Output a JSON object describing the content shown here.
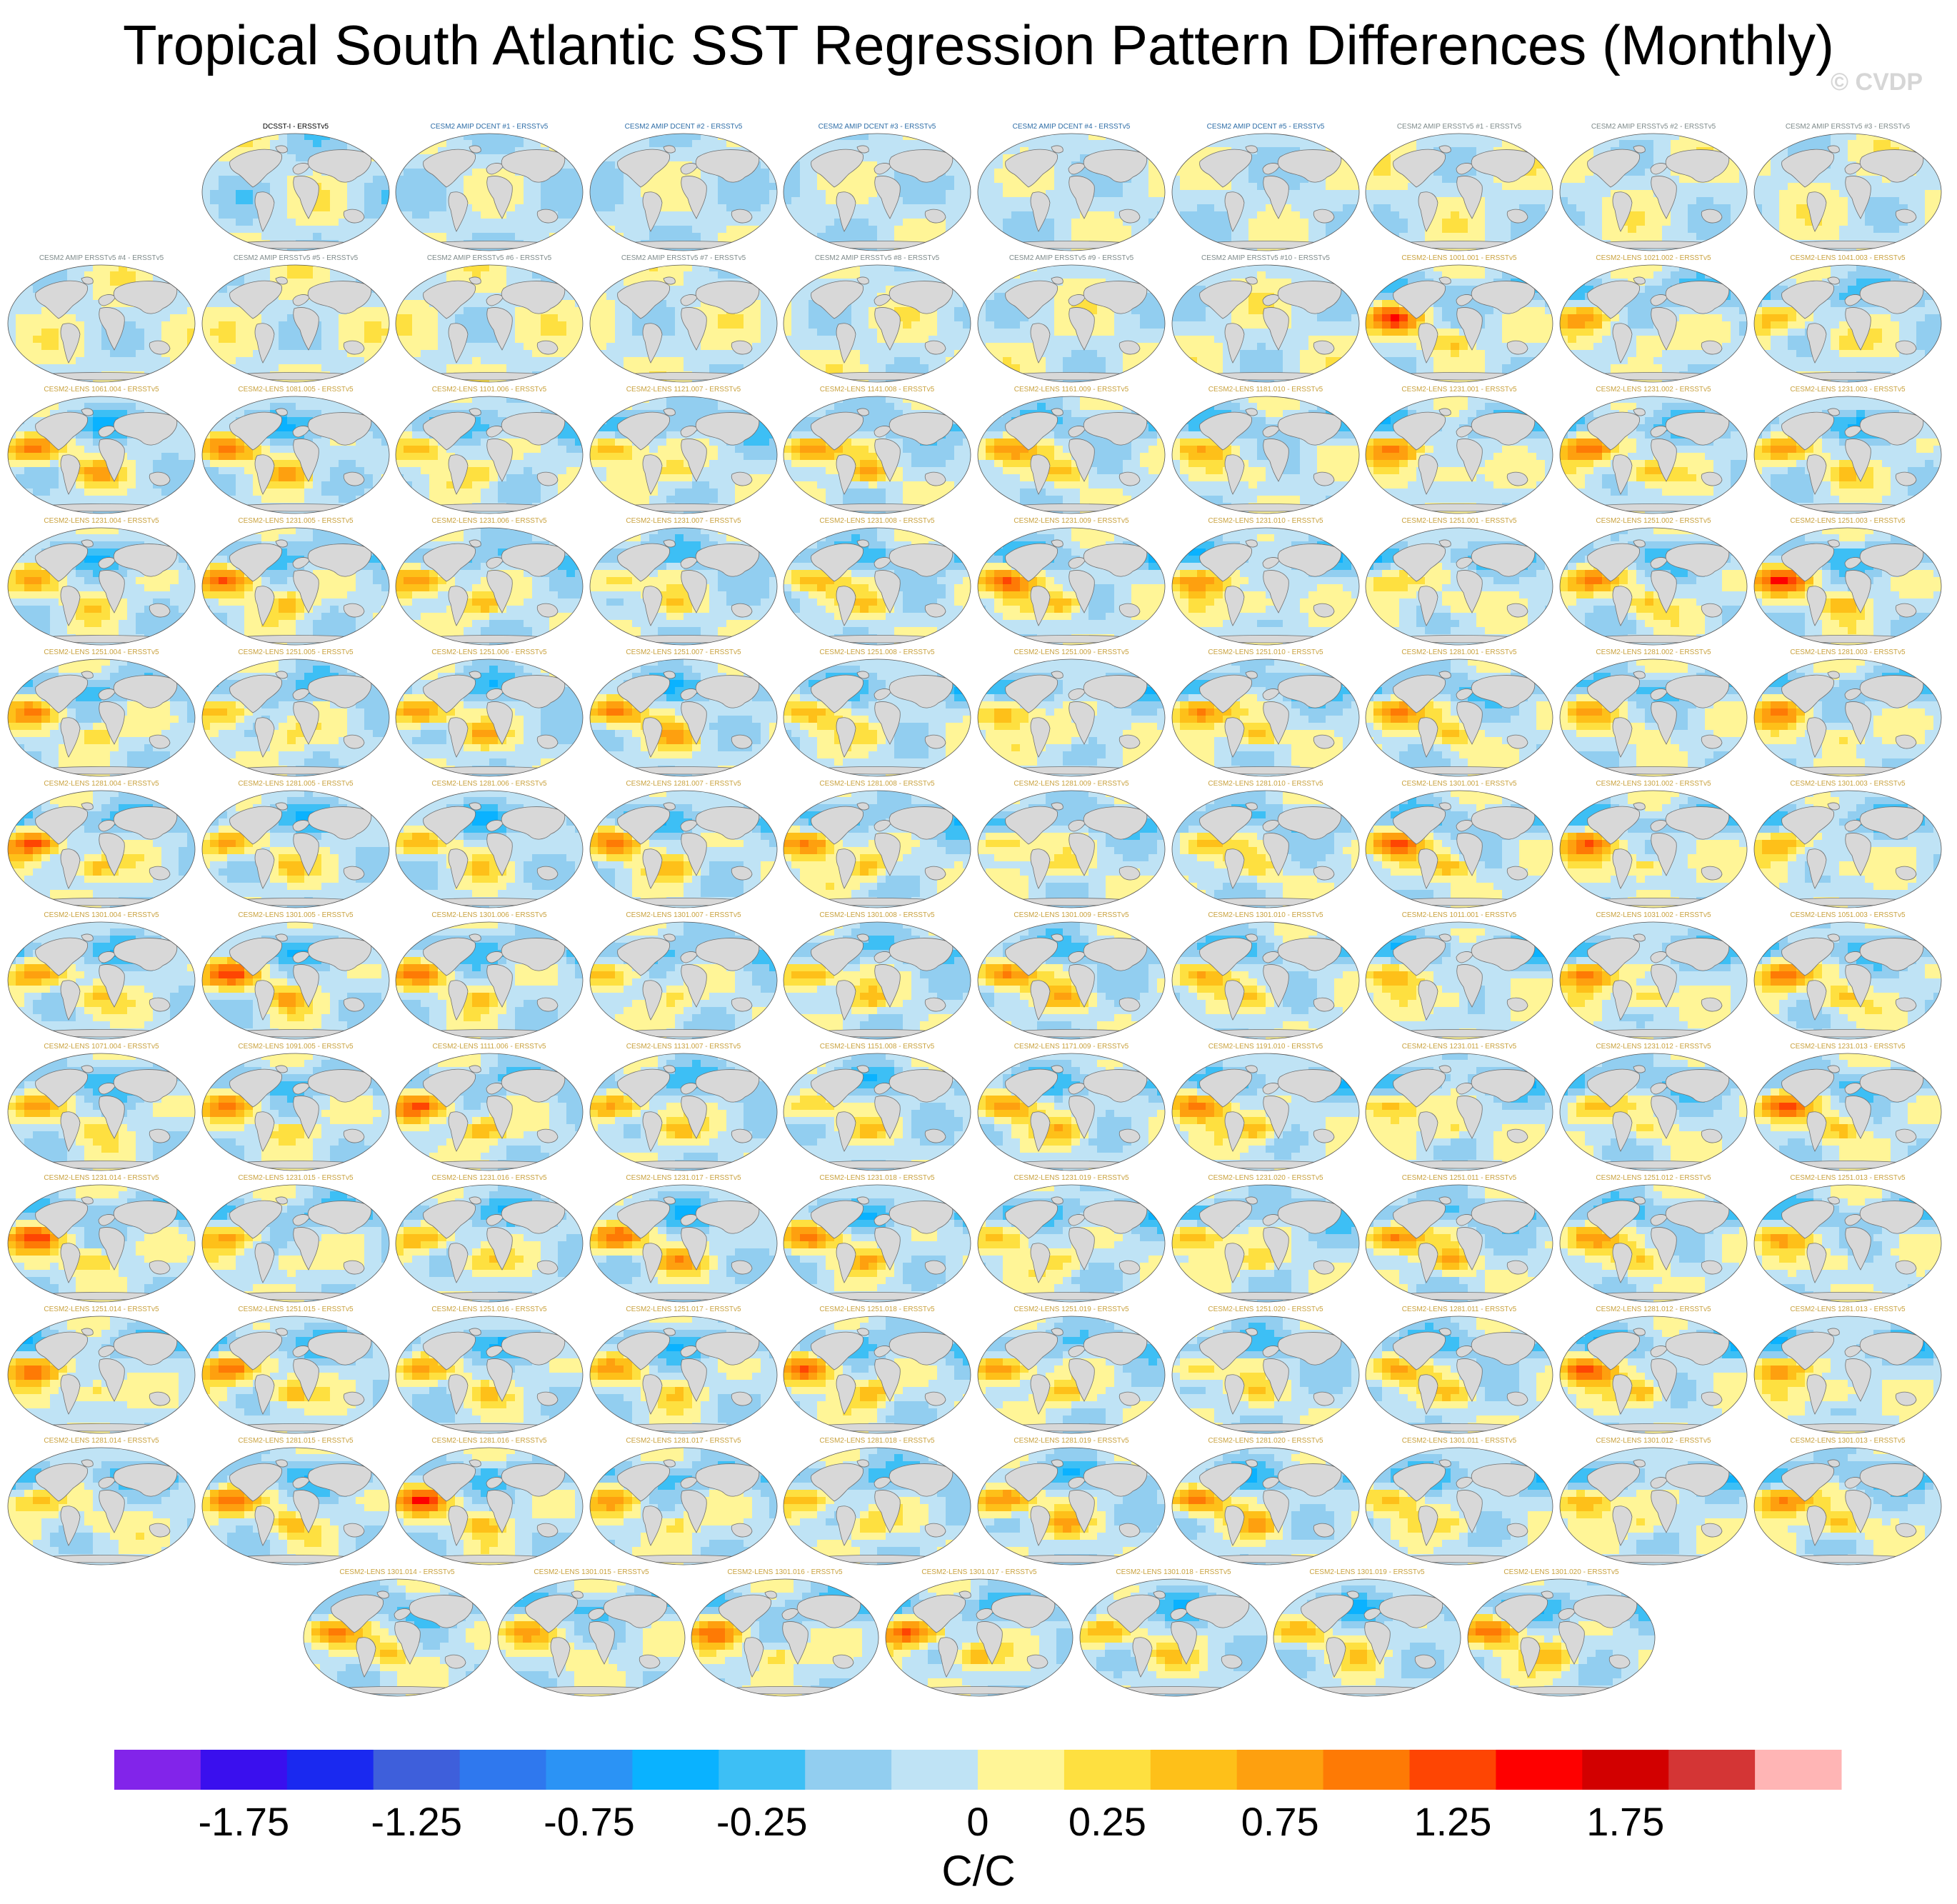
{
  "title": "Tropical South Atlantic SST Regression Pattern Differences (Monthly)",
  "watermark": "© CVDP",
  "chart_data": {
    "type": "heatmap",
    "projection": "global map panels",
    "panels": [
      {
        "label": "DCSST-I - ERSSTv5",
        "group": "obs"
      },
      {
        "label": "CESM2 AMIP DCENT #1 - ERSSTv5",
        "group": "dcent"
      },
      {
        "label": "CESM2 AMIP DCENT #2 - ERSSTv5",
        "group": "dcent"
      },
      {
        "label": "CESM2 AMIP DCENT #3 - ERSSTv5",
        "group": "dcent"
      },
      {
        "label": "CESM2 AMIP DCENT #4 - ERSSTv5",
        "group": "dcent"
      },
      {
        "label": "CESM2 AMIP DCENT #5 - ERSSTv5",
        "group": "dcent"
      },
      {
        "label": "CESM2 AMIP ERSSTv5 #1 - ERSSTv5",
        "group": "amip"
      },
      {
        "label": "CESM2 AMIP ERSSTv5 #2 - ERSSTv5",
        "group": "amip"
      },
      {
        "label": "CESM2 AMIP ERSSTv5 #3 - ERSSTv5",
        "group": "amip"
      },
      {
        "label": "CESM2 AMIP ERSSTv5 #4 - ERSSTv5",
        "group": "amip"
      },
      {
        "label": "CESM2 AMIP ERSSTv5 #5 - ERSSTv5",
        "group": "amip"
      },
      {
        "label": "CESM2 AMIP ERSSTv5 #6 - ERSSTv5",
        "group": "amip"
      },
      {
        "label": "CESM2 AMIP ERSSTv5 #7 - ERSSTv5",
        "group": "amip"
      },
      {
        "label": "CESM2 AMIP ERSSTv5 #8 - ERSSTv5",
        "group": "amip"
      },
      {
        "label": "CESM2 AMIP ERSSTv5 #9 - ERSSTv5",
        "group": "amip"
      },
      {
        "label": "CESM2 AMIP ERSSTv5 #10 - ERSSTv5",
        "group": "amip"
      },
      {
        "label": "CESM2-LENS 1001.001 - ERSSTv5",
        "group": "lens"
      },
      {
        "label": "CESM2-LENS 1021.002 - ERSSTv5",
        "group": "lens"
      },
      {
        "label": "CESM2-LENS 1041.003 - ERSSTv5",
        "group": "lens"
      },
      {
        "label": "CESM2-LENS 1061.004 - ERSSTv5",
        "group": "lens"
      },
      {
        "label": "CESM2-LENS 1081.005 - ERSSTv5",
        "group": "lens"
      },
      {
        "label": "CESM2-LENS 1101.006 - ERSSTv5",
        "group": "lens"
      },
      {
        "label": "CESM2-LENS 1121.007 - ERSSTv5",
        "group": "lens"
      },
      {
        "label": "CESM2-LENS 1141.008 - ERSSTv5",
        "group": "lens"
      },
      {
        "label": "CESM2-LENS 1161.009 - ERSSTv5",
        "group": "lens"
      },
      {
        "label": "CESM2-LENS 1181.010 - ERSSTv5",
        "group": "lens"
      },
      {
        "label": "CESM2-LENS 1231.001 - ERSSTv5",
        "group": "lens"
      },
      {
        "label": "CESM2-LENS 1231.002 - ERSSTv5",
        "group": "lens"
      },
      {
        "label": "CESM2-LENS 1231.003 - ERSSTv5",
        "group": "lens"
      },
      {
        "label": "CESM2-LENS 1231.004 - ERSSTv5",
        "group": "lens"
      },
      {
        "label": "CESM2-LENS 1231.005 - ERSSTv5",
        "group": "lens"
      },
      {
        "label": "CESM2-LENS 1231.006 - ERSSTv5",
        "group": "lens"
      },
      {
        "label": "CESM2-LENS 1231.007 - ERSSTv5",
        "group": "lens"
      },
      {
        "label": "CESM2-LENS 1231.008 - ERSSTv5",
        "group": "lens"
      },
      {
        "label": "CESM2-LENS 1231.009 - ERSSTv5",
        "group": "lens"
      },
      {
        "label": "CESM2-LENS 1231.010 - ERSSTv5",
        "group": "lens"
      },
      {
        "label": "CESM2-LENS 1251.001 - ERSSTv5",
        "group": "lens"
      },
      {
        "label": "CESM2-LENS 1251.002 - ERSSTv5",
        "group": "lens"
      },
      {
        "label": "CESM2-LENS 1251.003 - ERSSTv5",
        "group": "lens"
      },
      {
        "label": "CESM2-LENS 1251.004 - ERSSTv5",
        "group": "lens"
      },
      {
        "label": "CESM2-LENS 1251.005 - ERSSTv5",
        "group": "lens"
      },
      {
        "label": "CESM2-LENS 1251.006 - ERSSTv5",
        "group": "lens"
      },
      {
        "label": "CESM2-LENS 1251.007 - ERSSTv5",
        "group": "lens"
      },
      {
        "label": "CESM2-LENS 1251.008 - ERSSTv5",
        "group": "lens"
      },
      {
        "label": "CESM2-LENS 1251.009 - ERSSTv5",
        "group": "lens"
      },
      {
        "label": "CESM2-LENS 1251.010 - ERSSTv5",
        "group": "lens"
      },
      {
        "label": "CESM2-LENS 1281.001 - ERSSTv5",
        "group": "lens"
      },
      {
        "label": "CESM2-LENS 1281.002 - ERSSTv5",
        "group": "lens"
      },
      {
        "label": "CESM2-LENS 1281.003 - ERSSTv5",
        "group": "lens"
      },
      {
        "label": "CESM2-LENS 1281.004 - ERSSTv5",
        "group": "lens"
      },
      {
        "label": "CESM2-LENS 1281.005 - ERSSTv5",
        "group": "lens"
      },
      {
        "label": "CESM2-LENS 1281.006 - ERSSTv5",
        "group": "lens"
      },
      {
        "label": "CESM2-LENS 1281.007 - ERSSTv5",
        "group": "lens"
      },
      {
        "label": "CESM2-LENS 1281.008 - ERSSTv5",
        "group": "lens"
      },
      {
        "label": "CESM2-LENS 1281.009 - ERSSTv5",
        "group": "lens"
      },
      {
        "label": "CESM2-LENS 1281.010 - ERSSTv5",
        "group": "lens"
      },
      {
        "label": "CESM2-LENS 1301.001 - ERSSTv5",
        "group": "lens"
      },
      {
        "label": "CESM2-LENS 1301.002 - ERSSTv5",
        "group": "lens"
      },
      {
        "label": "CESM2-LENS 1301.003 - ERSSTv5",
        "group": "lens"
      },
      {
        "label": "CESM2-LENS 1301.004 - ERSSTv5",
        "group": "lens"
      },
      {
        "label": "CESM2-LENS 1301.005 - ERSSTv5",
        "group": "lens"
      },
      {
        "label": "CESM2-LENS 1301.006 - ERSSTv5",
        "group": "lens"
      },
      {
        "label": "CESM2-LENS 1301.007 - ERSSTv5",
        "group": "lens"
      },
      {
        "label": "CESM2-LENS 1301.008 - ERSSTv5",
        "group": "lens"
      },
      {
        "label": "CESM2-LENS 1301.009 - ERSSTv5",
        "group": "lens"
      },
      {
        "label": "CESM2-LENS 1301.010 - ERSSTv5",
        "group": "lens"
      },
      {
        "label": "CESM2-LENS 1011.001 - ERSSTv5",
        "group": "lens"
      },
      {
        "label": "CESM2-LENS 1031.002 - ERSSTv5",
        "group": "lens"
      },
      {
        "label": "CESM2-LENS 1051.003 - ERSSTv5",
        "group": "lens"
      },
      {
        "label": "CESM2-LENS 1071.004 - ERSSTv5",
        "group": "lens"
      },
      {
        "label": "CESM2-LENS 1091.005 - ERSSTv5",
        "group": "lens"
      },
      {
        "label": "CESM2-LENS 1111.006 - ERSSTv5",
        "group": "lens"
      },
      {
        "label": "CESM2-LENS 1131.007 - ERSSTv5",
        "group": "lens"
      },
      {
        "label": "CESM2-LENS 1151.008 - ERSSTv5",
        "group": "lens"
      },
      {
        "label": "CESM2-LENS 1171.009 - ERSSTv5",
        "group": "lens"
      },
      {
        "label": "CESM2-LENS 1191.010 - ERSSTv5",
        "group": "lens"
      },
      {
        "label": "CESM2-LENS 1231.011 - ERSSTv5",
        "group": "lens"
      },
      {
        "label": "CESM2-LENS 1231.012 - ERSSTv5",
        "group": "lens"
      },
      {
        "label": "CESM2-LENS 1231.013 - ERSSTv5",
        "group": "lens"
      },
      {
        "label": "CESM2-LENS 1231.014 - ERSSTv5",
        "group": "lens"
      },
      {
        "label": "CESM2-LENS 1231.015 - ERSSTv5",
        "group": "lens"
      },
      {
        "label": "CESM2-LENS 1231.016 - ERSSTv5",
        "group": "lens"
      },
      {
        "label": "CESM2-LENS 1231.017 - ERSSTv5",
        "group": "lens"
      },
      {
        "label": "CESM2-LENS 1231.018 - ERSSTv5",
        "group": "lens"
      },
      {
        "label": "CESM2-LENS 1231.019 - ERSSTv5",
        "group": "lens"
      },
      {
        "label": "CESM2-LENS 1231.020 - ERSSTv5",
        "group": "lens"
      },
      {
        "label": "CESM2-LENS 1251.011 - ERSSTv5",
        "group": "lens"
      },
      {
        "label": "CESM2-LENS 1251.012 - ERSSTv5",
        "group": "lens"
      },
      {
        "label": "CESM2-LENS 1251.013 - ERSSTv5",
        "group": "lens"
      },
      {
        "label": "CESM2-LENS 1251.014 - ERSSTv5",
        "group": "lens"
      },
      {
        "label": "CESM2-LENS 1251.015 - ERSSTv5",
        "group": "lens"
      },
      {
        "label": "CESM2-LENS 1251.016 - ERSSTv5",
        "group": "lens"
      },
      {
        "label": "CESM2-LENS 1251.017 - ERSSTv5",
        "group": "lens"
      },
      {
        "label": "CESM2-LENS 1251.018 - ERSSTv5",
        "group": "lens"
      },
      {
        "label": "CESM2-LENS 1251.019 - ERSSTv5",
        "group": "lens"
      },
      {
        "label": "CESM2-LENS 1251.020 - ERSSTv5",
        "group": "lens"
      },
      {
        "label": "CESM2-LENS 1281.011 - ERSSTv5",
        "group": "lens"
      },
      {
        "label": "CESM2-LENS 1281.012 - ERSSTv5",
        "group": "lens"
      },
      {
        "label": "CESM2-LENS 1281.013 - ERSSTv5",
        "group": "lens"
      },
      {
        "label": "CESM2-LENS 1281.014 - ERSSTv5",
        "group": "lens"
      },
      {
        "label": "CESM2-LENS 1281.015 - ERSSTv5",
        "group": "lens"
      },
      {
        "label": "CESM2-LENS 1281.016 - ERSSTv5",
        "group": "lens"
      },
      {
        "label": "CESM2-LENS 1281.017 - ERSSTv5",
        "group": "lens"
      },
      {
        "label": "CESM2-LENS 1281.018 - ERSSTv5",
        "group": "lens"
      },
      {
        "label": "CESM2-LENS 1281.019 - ERSSTv5",
        "group": "lens"
      },
      {
        "label": "CESM2-LENS 1281.020 - ERSSTv5",
        "group": "lens"
      },
      {
        "label": "CESM2-LENS 1301.011 - ERSSTv5",
        "group": "lens"
      },
      {
        "label": "CESM2-LENS 1301.012 - ERSSTv5",
        "group": "lens"
      },
      {
        "label": "CESM2-LENS 1301.013 - ERSSTv5",
        "group": "lens"
      },
      {
        "label": "CESM2-LENS 1301.014 - ERSSTv5",
        "group": "lens"
      },
      {
        "label": "CESM2-LENS 1301.015 - ERSSTv5",
        "group": "lens"
      },
      {
        "label": "CESM2-LENS 1301.016 - ERSSTv5",
        "group": "lens"
      },
      {
        "label": "CESM2-LENS 1301.017 - ERSSTv5",
        "group": "lens"
      },
      {
        "label": "CESM2-LENS 1301.018 - ERSSTv5",
        "group": "lens"
      },
      {
        "label": "CESM2-LENS 1301.019 - ERSSTv5",
        "group": "lens"
      },
      {
        "label": "CESM2-LENS 1301.020 - ERSSTv5",
        "group": "lens"
      }
    ],
    "colorbar": {
      "units": "C/C",
      "colors": [
        "#8224ea",
        "#3a0fee",
        "#1a29f0",
        "#3e5fdb",
        "#2f78ee",
        "#2b93f5",
        "#0ab2ff",
        "#3dbff5",
        "#92cef0",
        "#bfe3f5",
        "#fff597",
        "#fee040",
        "#fec019",
        "#fea00f",
        "#fe7a05",
        "#fe4503",
        "#fe0000",
        "#d20000",
        "#d43535",
        "#ffb5b5"
      ],
      "tick_labels": [
        "-1.75",
        "-1.25",
        "-0.75",
        "-0.25",
        "0",
        "0.25",
        "0.75",
        "1.25",
        "1.75"
      ],
      "tick_boundaries": [
        2,
        4,
        6,
        8,
        10,
        12,
        14,
        16,
        18
      ]
    },
    "group_label_colors": {
      "obs": "#000000",
      "dcent": "#2f6ea7",
      "amip": "#7f8b8b",
      "lens": "#c9a23f"
    },
    "land_color": "#d8d8d8",
    "coast_color": "#707070"
  }
}
